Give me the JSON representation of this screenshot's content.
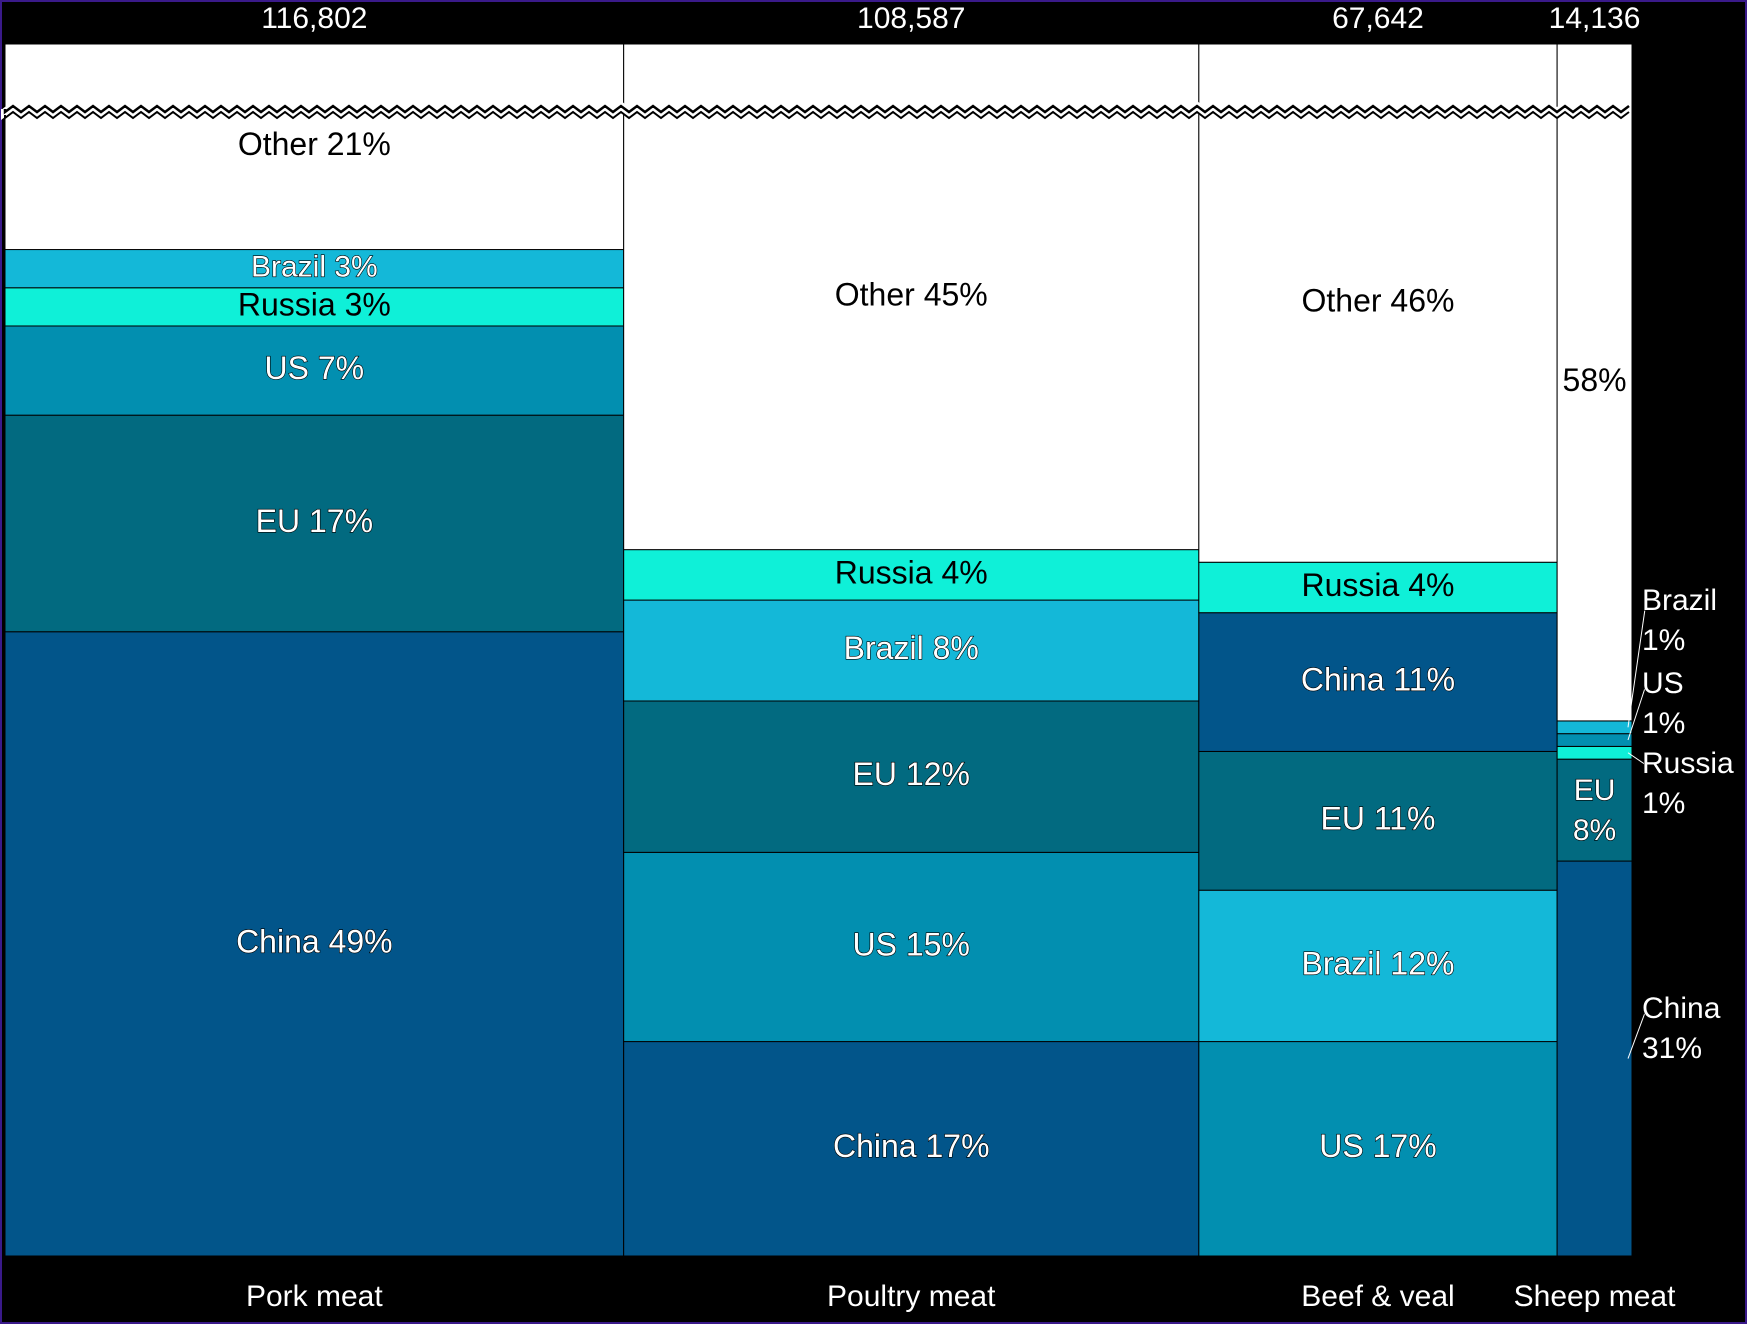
{
  "chart_data": {
    "type": "marimekko",
    "title": "",
    "xlabel": "",
    "ylabel": "",
    "ylim": [
      0,
      100
    ],
    "grid": false,
    "legend": "none",
    "axis_break": true,
    "colors": {
      "China": "#02558a",
      "EU": "#026a80",
      "US": "#028fb0",
      "Brazil": "#14b8d8",
      "Russia": "#0ff0d8",
      "Other": "#ffffff",
      "background": "#000000"
    },
    "columns": [
      {
        "category": "Pork meat",
        "total": 116802,
        "total_label": "116,802",
        "segments": [
          {
            "name": "China",
            "value": 49,
            "label": "China 49%"
          },
          {
            "name": "EU",
            "value": 17,
            "label": "EU 17%"
          },
          {
            "name": "US",
            "value": 7,
            "label": "US 7%"
          },
          {
            "name": "Russia",
            "value": 3,
            "label": "Russia 3%"
          },
          {
            "name": "Brazil",
            "value": 3,
            "label": "Brazil 3%"
          },
          {
            "name": "Other",
            "value": 21,
            "label": "Other 21%"
          }
        ]
      },
      {
        "category": "Poultry meat",
        "total": 108587,
        "total_label": "108,587",
        "segments": [
          {
            "name": "China",
            "value": 17,
            "label": "China 17%"
          },
          {
            "name": "US",
            "value": 15,
            "label": "US 15%"
          },
          {
            "name": "EU",
            "value": 12,
            "label": "EU 12%"
          },
          {
            "name": "Brazil",
            "value": 8,
            "label": "Brazil 8%"
          },
          {
            "name": "Russia",
            "value": 4,
            "label": "Russia 4%"
          },
          {
            "name": "Other",
            "value": 45,
            "label": "Other 45%"
          }
        ]
      },
      {
        "category": "Beef & veal",
        "total": 67642,
        "total_label": "67,642",
        "segments": [
          {
            "name": "US",
            "value": 17,
            "label": "US 17%"
          },
          {
            "name": "Brazil",
            "value": 12,
            "label": "Brazil 12%"
          },
          {
            "name": "EU",
            "value": 11,
            "label": "EU 11%"
          },
          {
            "name": "China",
            "value": 11,
            "label": "China 11%"
          },
          {
            "name": "Russia",
            "value": 4,
            "label": "Russia 4%"
          },
          {
            "name": "Other",
            "value": 46,
            "label": "Other 46%"
          }
        ]
      },
      {
        "category": "Sheep meat",
        "total": 14136,
        "total_label": "14,136",
        "segments": [
          {
            "name": "China",
            "value": 31,
            "label": "China 31%",
            "callout": true,
            "callout_lines": [
              "China",
              "31%"
            ]
          },
          {
            "name": "EU",
            "value": 8,
            "label": "EU 8%",
            "inside_lines": [
              "EU",
              "8%"
            ]
          },
          {
            "name": "Russia",
            "value": 1,
            "label": "Russia 1%",
            "callout": true,
            "callout_lines": [
              "Russia",
              "1%"
            ]
          },
          {
            "name": "US",
            "value": 1,
            "label": "US 1%",
            "callout": true,
            "callout_lines": [
              "US",
              "1%"
            ]
          },
          {
            "name": "Brazil",
            "value": 1,
            "label": "Brazil 1%",
            "callout": true,
            "callout_lines": [
              "Brazil",
              "1%"
            ]
          },
          {
            "name": "Other",
            "value": 58,
            "label": "58%"
          }
        ]
      }
    ]
  }
}
